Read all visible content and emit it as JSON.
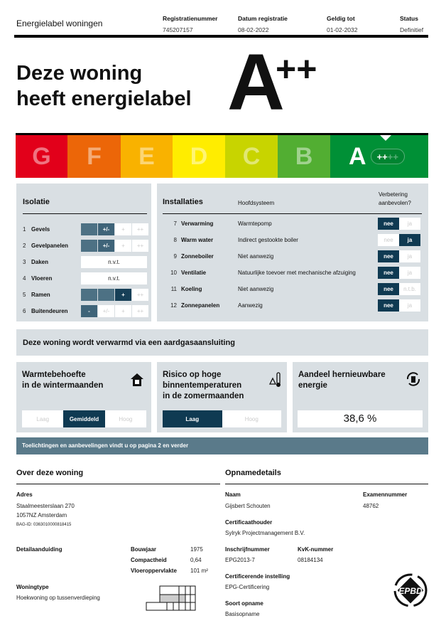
{
  "header": {
    "title": "Energielabel woningen",
    "columns": [
      {
        "label": "Registratienummer",
        "value": "745207157"
      },
      {
        "label": "Datum registratie",
        "value": "08-02-2022"
      },
      {
        "label": "Geldig tot",
        "value": "01-02-2032"
      },
      {
        "label": "Status",
        "value": "Definitief"
      }
    ]
  },
  "headline": {
    "line1": "Deze woning",
    "line2": "heeft energielabel",
    "label": "A",
    "plus": "++"
  },
  "scale": {
    "classes": [
      {
        "letter": "G",
        "color": "#e2001a"
      },
      {
        "letter": "F",
        "color": "#ec6608"
      },
      {
        "letter": "E",
        "color": "#f9b200"
      },
      {
        "letter": "D",
        "color": "#ffed00"
      },
      {
        "letter": "C",
        "color": "#c8d400"
      },
      {
        "letter": "B",
        "color": "#52ae32"
      },
      {
        "letter": "A",
        "color": "#009036"
      }
    ],
    "current": "A",
    "pill_on": "++",
    "pill_off": "++"
  },
  "isolatie": {
    "title": "Isolatie",
    "levels": [
      "-",
      "+/-",
      "+",
      "++"
    ],
    "items": [
      {
        "num": "1",
        "name": "Gevels",
        "value": "+/-"
      },
      {
        "num": "2",
        "name": "Gevelpanelen",
        "value": "+/-"
      },
      {
        "num": "3",
        "name": "Daken",
        "value": "n.v.t."
      },
      {
        "num": "4",
        "name": "Vloeren",
        "value": "n.v.t."
      },
      {
        "num": "5",
        "name": "Ramen",
        "value": "+"
      },
      {
        "num": "6",
        "name": "Buitendeuren",
        "value": "-"
      }
    ]
  },
  "installaties": {
    "title": "Installaties",
    "col_system": "Hoofdsysteem",
    "col_improve_1": "Verbetering",
    "col_improve_2": "aanbevolen?",
    "items": [
      {
        "num": "7",
        "name": "Verwarming",
        "system": "Warmtepomp",
        "options": [
          "nee",
          "ja"
        ],
        "selected": "nee"
      },
      {
        "num": "8",
        "name": "Warm water",
        "system": "Indirect gestookte boiler",
        "options": [
          "nee",
          "ja"
        ],
        "selected": "ja"
      },
      {
        "num": "9",
        "name": "Zonneboiler",
        "system": "Niet aanwezig",
        "options": [
          "nee",
          "ja"
        ],
        "selected": "nee"
      },
      {
        "num": "10",
        "name": "Ventilatie",
        "system": "Natuurlijke toevoer met mechanische afzuiging",
        "options": [
          "nee",
          "ja"
        ],
        "selected": "nee"
      },
      {
        "num": "11",
        "name": "Koeling",
        "system": "Niet aanwezig",
        "options": [
          "nee",
          "n.t.b."
        ],
        "selected": "nee"
      },
      {
        "num": "12",
        "name": "Zonnepanelen",
        "system": "Aanwezig",
        "options": [
          "nee",
          "ja"
        ],
        "selected": "nee"
      }
    ]
  },
  "gas": "Deze woning wordt verwarmd via een aardgasaansluiting",
  "cards": {
    "winter": {
      "title1": "Warmtebehoefte",
      "title2": "in de wintermaanden",
      "options": [
        "Laag",
        "Gemiddeld",
        "Hoog"
      ],
      "selected": "Gemiddeld",
      "icon": "house-icon"
    },
    "summer": {
      "title1": "Risico op hoge",
      "title2": "binnentemperaturen",
      "title3": "in de zomermaanden",
      "options": [
        "Laag",
        "Hoog"
      ],
      "selected": "Laag",
      "icon": "thermometer-warning-icon"
    },
    "renewable": {
      "title1": "Aandeel hernieuwbare",
      "title2": "energie",
      "value": "38,6 %",
      "icon": "renewable-cycle-icon"
    }
  },
  "banner": "Toelichtingen en aanbevelingen vindt u op pagina 2 en verder",
  "woning": {
    "title": "Over deze woning",
    "adres_label": "Adres",
    "street": "Staalmeesterslaan 270",
    "city": "1057NZ Amsterdam",
    "bag": "BAG-ID: 0363010000818415",
    "detail_label": "Detailaanduiding",
    "bouwjaar_label": "Bouwjaar",
    "bouwjaar": "1975",
    "compact_label": "Compactheid",
    "compact": "0,64",
    "vloer_label": "Vloeroppervlakte",
    "vloer": "101 m²",
    "type_label": "Woningtype",
    "type": "Hoekwoning op tussenverdieping"
  },
  "opname": {
    "title": "Opnamedetails",
    "naam_label": "Naam",
    "naam": "Gijsbert Schouten",
    "exam_label": "Examennummer",
    "exam": "48762",
    "cert_label": "Certificaathouder",
    "cert": "Sylryk Projectmanagement B.V.",
    "inschr_label": "Inschrijfnummer",
    "inschr": "EPG2013-7",
    "kvk_label": "KvK-nummer",
    "kvk": "08184134",
    "inst_label": "Certificerende instelling",
    "inst": "EPG-Certificering",
    "soort_label": "Soort opname",
    "soort": "Basisopname",
    "logo": "EPBD"
  }
}
